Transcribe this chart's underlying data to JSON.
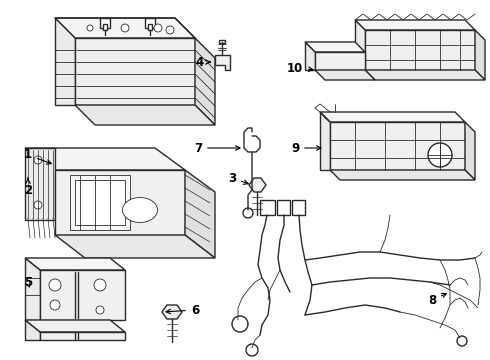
{
  "background_color": "#ffffff",
  "line_color": "#2a2a2a",
  "lw": 1.0,
  "tlw": 0.6,
  "label_color": "#000000",
  "label_fontsize": 8.5,
  "arrow_color": "#000000"
}
